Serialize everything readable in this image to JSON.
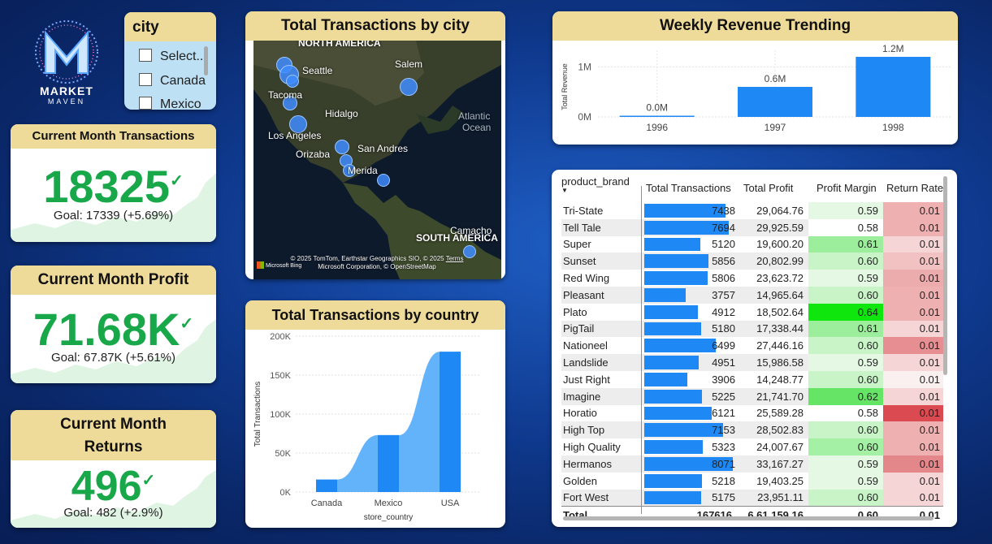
{
  "colors": {
    "accent": "#1e88f5",
    "header": "#efdb99",
    "kpi_green": "#18a84a",
    "slicer_bg": "#bde0f5"
  },
  "logo": {
    "line1": "MARKET",
    "line2": "MAVEN"
  },
  "slicer": {
    "title": "city",
    "options": [
      "Select...",
      "Canada",
      "Mexico"
    ]
  },
  "kpis": [
    {
      "title": "Current Month Transactions",
      "value": "18325",
      "goal": "Goal: 17339 (+5.69%)",
      "status_icon": "check-icon"
    },
    {
      "title": "Current Month Profit",
      "value": "71.68K",
      "goal": "Goal: 67.87K (+5.61%)",
      "status_icon": "check-icon"
    },
    {
      "title": "Current Month Returns",
      "value": "496",
      "goal": "Goal: 482 (+2.9%)",
      "status_icon": "check-icon"
    }
  ],
  "map": {
    "title": "Total Transactions by city",
    "region_labels": [
      "NORTH AMERICA",
      "SOUTH AMERICA",
      "Atlantic",
      "Ocean"
    ],
    "cities": [
      "Seattle",
      "Salem",
      "Tacoma",
      "Hidalgo",
      "Los Angeles",
      "Orizaba",
      "San Andres",
      "Merida",
      "Camacho"
    ],
    "attribution_line1": "© 2025 TomTom, Earthstar Geographics SIO, © 2025",
    "attribution_terms": "Terms",
    "attribution_line2": "Microsoft Corporation, © OpenStreetMap",
    "bing": "Microsoft Bing"
  },
  "country_chart": {
    "title": "Total Transactions by country",
    "ylabel": "Total Transactions",
    "xlabel": "store_country",
    "ticks": [
      "200K",
      "150K",
      "100K",
      "50K",
      "0K"
    ]
  },
  "revenue_chart": {
    "title": "Weekly Revenue Trending",
    "ylabel": "Total Revenue",
    "ticks": [
      "1M",
      "0M"
    ]
  },
  "chart_data": [
    {
      "type": "bar",
      "title": "Total Transactions by country",
      "xlabel": "store_country",
      "ylabel": "Total Transactions",
      "categories": [
        "Canada",
        "Mexico",
        "USA"
      ],
      "values": [
        16000,
        73000,
        180000
      ],
      "ylim": [
        0,
        200000
      ],
      "grid": true
    },
    {
      "type": "bar",
      "title": "Weekly Revenue Trending",
      "xlabel": "",
      "ylabel": "Total Revenue",
      "categories": [
        "1996",
        "1997",
        "1998"
      ],
      "values": [
        0.0,
        0.6,
        1.2
      ],
      "data_labels": [
        "0.0M",
        "0.6M",
        "1.2M"
      ],
      "ylim": [
        0,
        1.2
      ],
      "grid": true
    }
  ],
  "table": {
    "columns": [
      "product_brand",
      "Total Transactions",
      "Total Profit",
      "Profit Margin",
      "Return Rate"
    ],
    "rows": [
      [
        "Tri-State",
        "7438",
        "29,064.76",
        "0.59",
        "0.01"
      ],
      [
        "Tell Tale",
        "7694",
        "29,925.59",
        "0.58",
        "0.01"
      ],
      [
        "Super",
        "5120",
        "19,600.20",
        "0.61",
        "0.01"
      ],
      [
        "Sunset",
        "5856",
        "20,802.99",
        "0.60",
        "0.01"
      ],
      [
        "Red Wing",
        "5806",
        "23,623.72",
        "0.59",
        "0.01"
      ],
      [
        "Pleasant",
        "3757",
        "14,965.64",
        "0.60",
        "0.01"
      ],
      [
        "Plato",
        "4912",
        "18,502.64",
        "0.64",
        "0.01"
      ],
      [
        "PigTail",
        "5180",
        "17,338.44",
        "0.61",
        "0.01"
      ],
      [
        "Nationeel",
        "6499",
        "27,446.16",
        "0.60",
        "0.01"
      ],
      [
        "Landslide",
        "4951",
        "15,986.58",
        "0.59",
        "0.01"
      ],
      [
        "Just Right",
        "3906",
        "14,248.77",
        "0.60",
        "0.01"
      ],
      [
        "Imagine",
        "5225",
        "21,741.70",
        "0.62",
        "0.01"
      ],
      [
        "Horatio",
        "6121",
        "25,589.28",
        "0.58",
        "0.01"
      ],
      [
        "High Top",
        "7153",
        "28,502.83",
        "0.60",
        "0.01"
      ],
      [
        "High Quality",
        "5323",
        "24,007.67",
        "0.60",
        "0.01"
      ],
      [
        "Hermanos",
        "8071",
        "33,167.27",
        "0.59",
        "0.01"
      ],
      [
        "Golden",
        "5218",
        "19,403.25",
        "0.59",
        "0.01"
      ],
      [
        "Fort West",
        "5175",
        "23,951.11",
        "0.60",
        "0.01"
      ]
    ],
    "margin_shades": [
      "#e4f8e4",
      "#ffffff",
      "#9cee9c",
      "#c8f4c8",
      "#e4f8e4",
      "#c8f4c8",
      "#0ee60e",
      "#9cee9c",
      "#c8f4c8",
      "#e4f8e4",
      "#c8f4c8",
      "#66e466",
      "#ffffff",
      "#c8f4c8",
      "#a4f0a4",
      "#e4f8e4",
      "#e4f8e4",
      "#c8f4c8"
    ],
    "return_shades": [
      "#efb0b2",
      "#efb0b2",
      "#f5d5d6",
      "#f2c2c3",
      "#ecabad",
      "#efb0b2",
      "#efb0b2",
      "#f5d5d6",
      "#e68e91",
      "#f5d5d6",
      "#fbf0f0",
      "#f5d5d6",
      "#db4a50",
      "#efb0b2",
      "#efb0b2",
      "#e4878a",
      "#f5d5d6",
      "#f5d5d6"
    ],
    "total": [
      "Total",
      "167616",
      "6,61,159.16",
      "0.60",
      "0.01"
    ]
  }
}
